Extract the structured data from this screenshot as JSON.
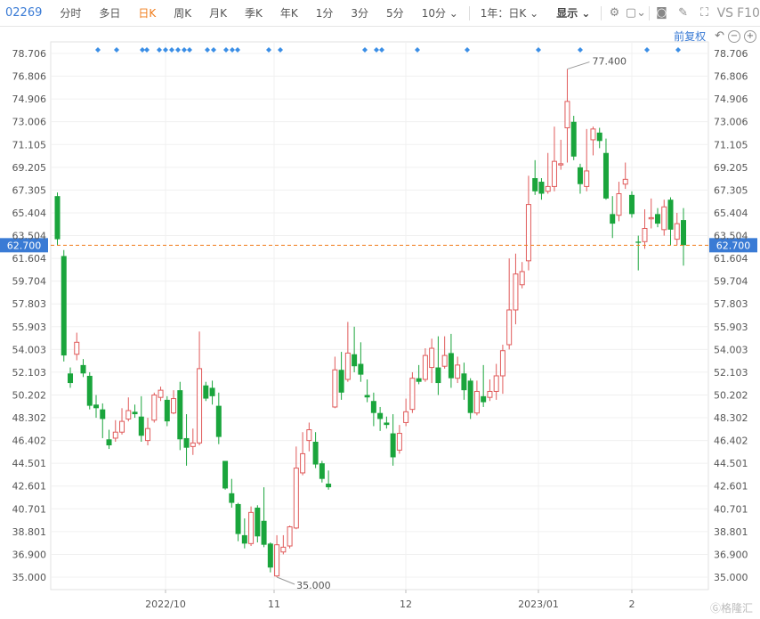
{
  "toolbar": {
    "code": "02269",
    "tabs": [
      "分时",
      "多日",
      "日K",
      "周K",
      "月K",
      "季K",
      "年K",
      "1分",
      "3分",
      "5分",
      "10分"
    ],
    "active_tab": "日K",
    "range_select": "1年：日K",
    "display_select": "显示",
    "vs_label": "VS",
    "f10_label": "F10"
  },
  "subheader": {
    "fuquan": "前复权"
  },
  "watermark": "格隆汇",
  "chart_data": {
    "type": "candlestick",
    "y_ticks": [
      "78.706",
      "76.806",
      "74.906",
      "73.006",
      "71.105",
      "69.205",
      "67.305",
      "65.404",
      "63.504",
      "61.604",
      "59.704",
      "57.803",
      "55.903",
      "54.003",
      "52.103",
      "50.202",
      "48.302",
      "46.402",
      "44.501",
      "42.601",
      "40.701",
      "38.801",
      "36.900",
      "35.000"
    ],
    "x_ticks": [
      "2022/10",
      "11",
      "12",
      "2023/01",
      "2"
    ],
    "current_price": "62.700",
    "max_label": "77.400",
    "min_label": "35.000",
    "ylim": [
      35.0,
      78.706
    ],
    "candles": [
      [
        66.8,
        63.2,
        67.1,
        62.7
      ],
      [
        61.8,
        53.5,
        62.3,
        53.0
      ],
      [
        52.0,
        51.2,
        52.5,
        50.8
      ],
      [
        53.6,
        54.6,
        55.4,
        53.1
      ],
      [
        52.7,
        52.0,
        53.2,
        51.7
      ],
      [
        51.8,
        49.3,
        52.1,
        49.0
      ],
      [
        49.4,
        49.1,
        50.2,
        48.3
      ],
      [
        49.0,
        48.2,
        49.5,
        46.6
      ],
      [
        46.5,
        46.0,
        47.3,
        45.7
      ],
      [
        46.6,
        47.1,
        48.1,
        46.3
      ],
      [
        47.1,
        48.0,
        49.1,
        46.9
      ],
      [
        48.2,
        48.9,
        50.0,
        48.0
      ],
      [
        48.8,
        48.6,
        49.4,
        48.3
      ],
      [
        48.4,
        46.8,
        50.1,
        46.3
      ],
      [
        46.4,
        47.4,
        48.3,
        46.0
      ],
      [
        48.1,
        50.2,
        50.4,
        47.9
      ],
      [
        50.0,
        50.6,
        50.9,
        49.7
      ],
      [
        49.8,
        48.0,
        50.1,
        47.6
      ],
      [
        48.7,
        49.9,
        50.6,
        48.6
      ],
      [
        50.6,
        46.5,
        51.3,
        45.6
      ],
      [
        46.6,
        45.8,
        48.6,
        44.3
      ],
      [
        45.9,
        46.2,
        47.4,
        45.2
      ],
      [
        46.2,
        52.4,
        55.5,
        46.0
      ],
      [
        51.0,
        49.9,
        51.3,
        49.7
      ],
      [
        50.8,
        50.1,
        51.4,
        49.4
      ],
      [
        49.3,
        46.7,
        50.4,
        46.1
      ],
      [
        44.7,
        42.4,
        44.7,
        42.3
      ],
      [
        42.0,
        41.2,
        43.2,
        40.8
      ],
      [
        41.1,
        38.6,
        41.2,
        38.0
      ],
      [
        38.5,
        37.8,
        39.9,
        37.4
      ],
      [
        37.8,
        40.4,
        40.9,
        37.6
      ],
      [
        40.8,
        38.4,
        41.0,
        37.9
      ],
      [
        39.7,
        37.7,
        42.5,
        37.5
      ],
      [
        37.8,
        35.8,
        37.9,
        35.4
      ],
      [
        35.1,
        37.7,
        38.5,
        35.0
      ],
      [
        37.1,
        37.5,
        38.5,
        36.9
      ],
      [
        37.6,
        39.2,
        39.3,
        37.4
      ],
      [
        39.1,
        44.1,
        45.9,
        39.0
      ],
      [
        43.7,
        45.3,
        47.1,
        43.5
      ],
      [
        46.4,
        47.3,
        47.9,
        45.5
      ],
      [
        46.3,
        44.4,
        47.1,
        44.1
      ],
      [
        44.5,
        43.2,
        44.7,
        42.9
      ],
      [
        42.8,
        42.5,
        43.9,
        42.3
      ],
      [
        49.2,
        52.3,
        53.4,
        49.1
      ],
      [
        52.3,
        50.4,
        53.8,
        49.8
      ],
      [
        51.5,
        53.7,
        56.3,
        51.3
      ],
      [
        53.6,
        52.6,
        55.9,
        52.1
      ],
      [
        52.8,
        51.9,
        54.6,
        51.3
      ],
      [
        50.2,
        50.0,
        51.5,
        49.6
      ],
      [
        49.7,
        48.7,
        50.4,
        47.6
      ],
      [
        48.7,
        48.2,
        49.2,
        47.2
      ],
      [
        47.9,
        47.7,
        48.4,
        47.4
      ],
      [
        47.0,
        45.0,
        48.6,
        44.3
      ],
      [
        45.6,
        47.0,
        47.7,
        45.3
      ],
      [
        47.9,
        48.8,
        49.9,
        47.6
      ],
      [
        49.0,
        51.6,
        52.1,
        48.7
      ],
      [
        51.6,
        51.3,
        52.7,
        51.1
      ],
      [
        51.5,
        53.5,
        54.1,
        51.3
      ],
      [
        52.5,
        54.1,
        54.9,
        51.2
      ],
      [
        52.5,
        51.2,
        55.1,
        50.2
      ],
      [
        52.6,
        53.5,
        55.1,
        52.4
      ],
      [
        53.7,
        51.6,
        55.3,
        50.8
      ],
      [
        51.6,
        52.7,
        53.4,
        51.2
      ],
      [
        52.0,
        50.6,
        52.9,
        49.8
      ],
      [
        51.4,
        48.7,
        51.6,
        48.2
      ],
      [
        48.7,
        50.5,
        51.4,
        48.5
      ],
      [
        50.1,
        49.6,
        52.7,
        49.2
      ],
      [
        50.0,
        50.5,
        51.5,
        49.7
      ],
      [
        50.5,
        51.8,
        52.8,
        49.8
      ],
      [
        51.8,
        53.9,
        54.4,
        50.3
      ],
      [
        54.4,
        57.3,
        61.6,
        54.0
      ],
      [
        57.3,
        60.3,
        62.0,
        56.1
      ],
      [
        59.4,
        60.5,
        61.3,
        59.1
      ],
      [
        61.4,
        66.1,
        68.5,
        60.6
      ],
      [
        68.3,
        67.2,
        69.8,
        66.9
      ],
      [
        68.0,
        67.0,
        68.3,
        66.5
      ],
      [
        67.2,
        67.6,
        70.4,
        67.0
      ],
      [
        67.6,
        69.7,
        72.6,
        67.2
      ],
      [
        69.4,
        69.5,
        71.5,
        69.0
      ],
      [
        72.5,
        74.7,
        77.4,
        69.6
      ],
      [
        73.0,
        70.1,
        73.5,
        69.8
      ],
      [
        69.2,
        67.8,
        69.5,
        67.0
      ],
      [
        67.6,
        68.9,
        72.4,
        67.2
      ],
      [
        71.5,
        72.4,
        72.6,
        70.2
      ],
      [
        72.1,
        71.4,
        72.5,
        70.8
      ],
      [
        70.4,
        66.6,
        71.6,
        66.5
      ],
      [
        65.3,
        64.5,
        66.8,
        63.3
      ],
      [
        65.2,
        67.0,
        68.0,
        64.7
      ],
      [
        67.8,
        68.2,
        69.6,
        67.4
      ],
      [
        66.9,
        65.3,
        67.2,
        65.0
      ],
      [
        63.0,
        62.9,
        63.5,
        60.6
      ],
      [
        63.0,
        64.1,
        65.7,
        62.4
      ],
      [
        64.9,
        65.0,
        66.6,
        64.1
      ],
      [
        65.3,
        64.5,
        65.8,
        64.2
      ],
      [
        64.0,
        65.9,
        66.5,
        63.5
      ],
      [
        66.5,
        64.0,
        66.7,
        62.7
      ],
      [
        63.2,
        64.5,
        65.4,
        62.7
      ],
      [
        64.8,
        62.7,
        65.8,
        61.0
      ]
    ],
    "markers": [
      110,
      131,
      160,
      165,
      179,
      186,
      193,
      200,
      207,
      213,
      233,
      240,
      254,
      261,
      267,
      302,
      315,
      410,
      423,
      429,
      469,
      525,
      605,
      652,
      727,
      762
    ]
  }
}
